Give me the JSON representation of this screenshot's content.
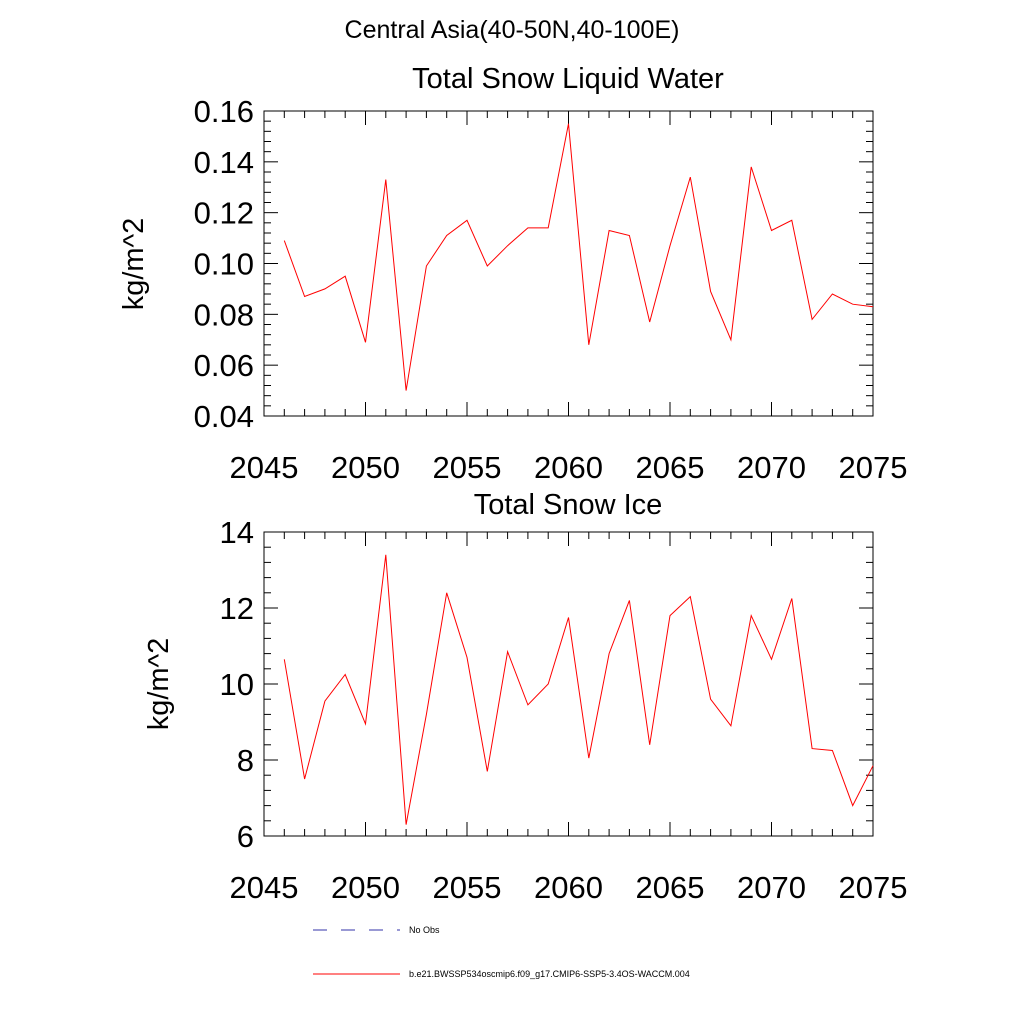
{
  "page": {
    "suptitle": "Central Asia(40-50N,40-100E)"
  },
  "chart_data": [
    {
      "type": "line",
      "title": "Total Snow Liquid Water",
      "xlabel": "",
      "ylabel": "kg/m^2",
      "xlim": [
        2045,
        2075
      ],
      "ylim": [
        0.04,
        0.16
      ],
      "xticks": [
        "2045",
        "2050",
        "2055",
        "2060",
        "2065",
        "2070",
        "2075"
      ],
      "yticks": [
        "0.04",
        "0.06",
        "0.08",
        "0.10",
        "0.12",
        "0.14",
        "0.16"
      ],
      "x": [
        2046,
        2047,
        2048,
        2049,
        2050,
        2051,
        2052,
        2053,
        2054,
        2055,
        2056,
        2057,
        2058,
        2059,
        2060,
        2061,
        2062,
        2063,
        2064,
        2065,
        2066,
        2067,
        2068,
        2069,
        2070,
        2071,
        2072,
        2073,
        2074,
        2075
      ],
      "series": [
        {
          "color": "#ff0000",
          "values": [
            0.109,
            0.087,
            0.09,
            0.095,
            0.069,
            0.133,
            0.05,
            0.099,
            0.111,
            0.117,
            0.099,
            0.107,
            0.114,
            0.114,
            0.155,
            0.068,
            0.113,
            0.111,
            0.077,
            0.107,
            0.134,
            0.089,
            0.07,
            0.138,
            0.113,
            0.117,
            0.078,
            0.088,
            0.084,
            0.083
          ]
        }
      ]
    },
    {
      "type": "line",
      "title": "Total Snow Ice",
      "xlabel": "",
      "ylabel": "kg/m^2",
      "xlim": [
        2045,
        2075
      ],
      "ylim": [
        6,
        14
      ],
      "xticks": [
        "2045",
        "2050",
        "2055",
        "2060",
        "2065",
        "2070",
        "2075"
      ],
      "yticks": [
        "6",
        "8",
        "10",
        "12",
        "14"
      ],
      "x": [
        2046,
        2047,
        2048,
        2049,
        2050,
        2051,
        2052,
        2053,
        2054,
        2055,
        2056,
        2057,
        2058,
        2059,
        2060,
        2061,
        2062,
        2063,
        2064,
        2065,
        2066,
        2067,
        2068,
        2069,
        2070,
        2071,
        2072,
        2073,
        2074,
        2075
      ],
      "series": [
        {
          "color": "#ff0000",
          "values": [
            10.65,
            7.5,
            9.55,
            10.25,
            8.95,
            13.4,
            6.3,
            9.2,
            12.4,
            10.7,
            7.7,
            10.85,
            9.45,
            10.0,
            11.75,
            8.05,
            10.8,
            12.2,
            8.4,
            11.8,
            12.3,
            9.6,
            8.9,
            11.8,
            10.65,
            12.25,
            8.3,
            8.25,
            6.8,
            7.85
          ]
        }
      ]
    }
  ],
  "legend": {
    "items": [
      {
        "label": "No Obs",
        "color": "#0000ff",
        "style": "dashed"
      },
      {
        "label": "b.e21.BWSSP534oscmip6.f09_g17.CMIP6-SSP5-3.4OS-WACCM.004",
        "color": "#ff0000",
        "style": "solid"
      }
    ]
  }
}
